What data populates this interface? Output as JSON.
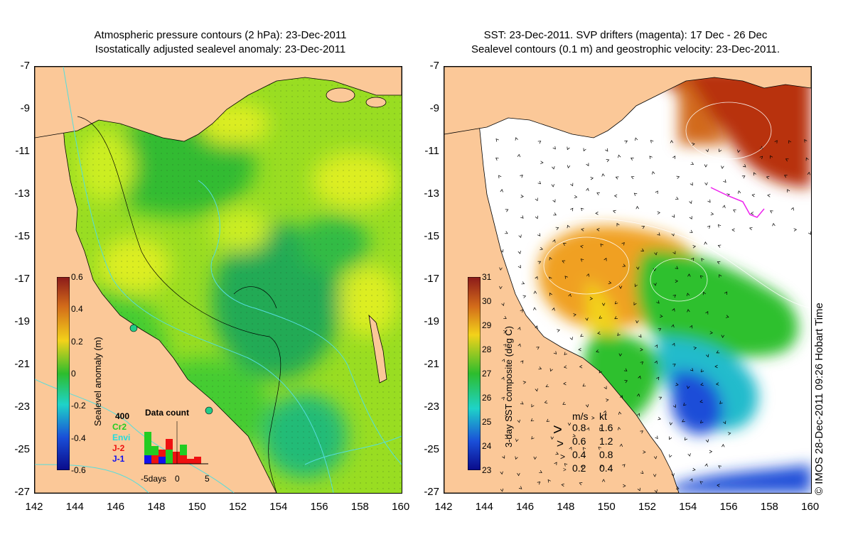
{
  "left_panel": {
    "title_line1": "Atmospheric pressure contours (2 hPa): 23-Dec-2011",
    "title_line2": "Isostatically adjusted sealevel anomaly: 23-Dec-2011",
    "colorbar": {
      "title": "Sealevel anomaly (m)",
      "ticks": [
        "0.6",
        "0.4",
        "0.2",
        "0",
        "-0.2",
        "-0.4",
        "-0.6"
      ]
    },
    "data_count": {
      "title": "Data count",
      "max_label": "400",
      "series": [
        {
          "name": "Cr2",
          "color": "#22cc22"
        },
        {
          "name": "Envi",
          "color": "#22dddd"
        },
        {
          "name": "J-2",
          "color": "#ee1111"
        },
        {
          "name": "J-1",
          "color": "#1111ee"
        }
      ],
      "axis_label_left": "-5days",
      "axis_label_mid": "0",
      "axis_label_right": "5"
    }
  },
  "right_panel": {
    "title_line1": "SST: 23-Dec-2011. SVP drifters (magenta): 17 Dec - 26 Dec",
    "title_line2": "Sealevel contours (0.1 m) and geostrophic velocity: 23-Dec-2011.",
    "colorbar": {
      "title": "3-day SST composite (deg C)",
      "ticks": [
        "31",
        "30",
        "29",
        "28",
        "27",
        "26",
        "25",
        "24",
        "23"
      ]
    },
    "speed_legend": {
      "header_ms": "m/s",
      "header_kt": "kt",
      "rows": [
        {
          "ms": "0.8",
          "kt": "1.6"
        },
        {
          "ms": "0.6",
          "kt": "1.2"
        },
        {
          "ms": "0.4",
          "kt": "0.8"
        },
        {
          "ms": "0.2",
          "kt": "0.4"
        }
      ]
    },
    "credit": "© IMOS 28-Dec-2011 09:26 Hobart Time"
  },
  "axes": {
    "y_ticks": [
      "-7",
      "-9",
      "-11",
      "-13",
      "-15",
      "-17",
      "-19",
      "-21",
      "-23",
      "-25",
      "-27"
    ],
    "x_ticks": [
      "142",
      "144",
      "146",
      "148",
      "150",
      "152",
      "154",
      "156",
      "158",
      "160"
    ]
  },
  "colors": {
    "land": "#fbc898",
    "ocean_green": "#33cc33",
    "ocean_yellowgreen": "#ccee22",
    "ssh_cyan": "#22cc99",
    "sst_orange": "#f0a020",
    "sst_red": "#b83010",
    "sst_blue": "#1e4ed8"
  }
}
